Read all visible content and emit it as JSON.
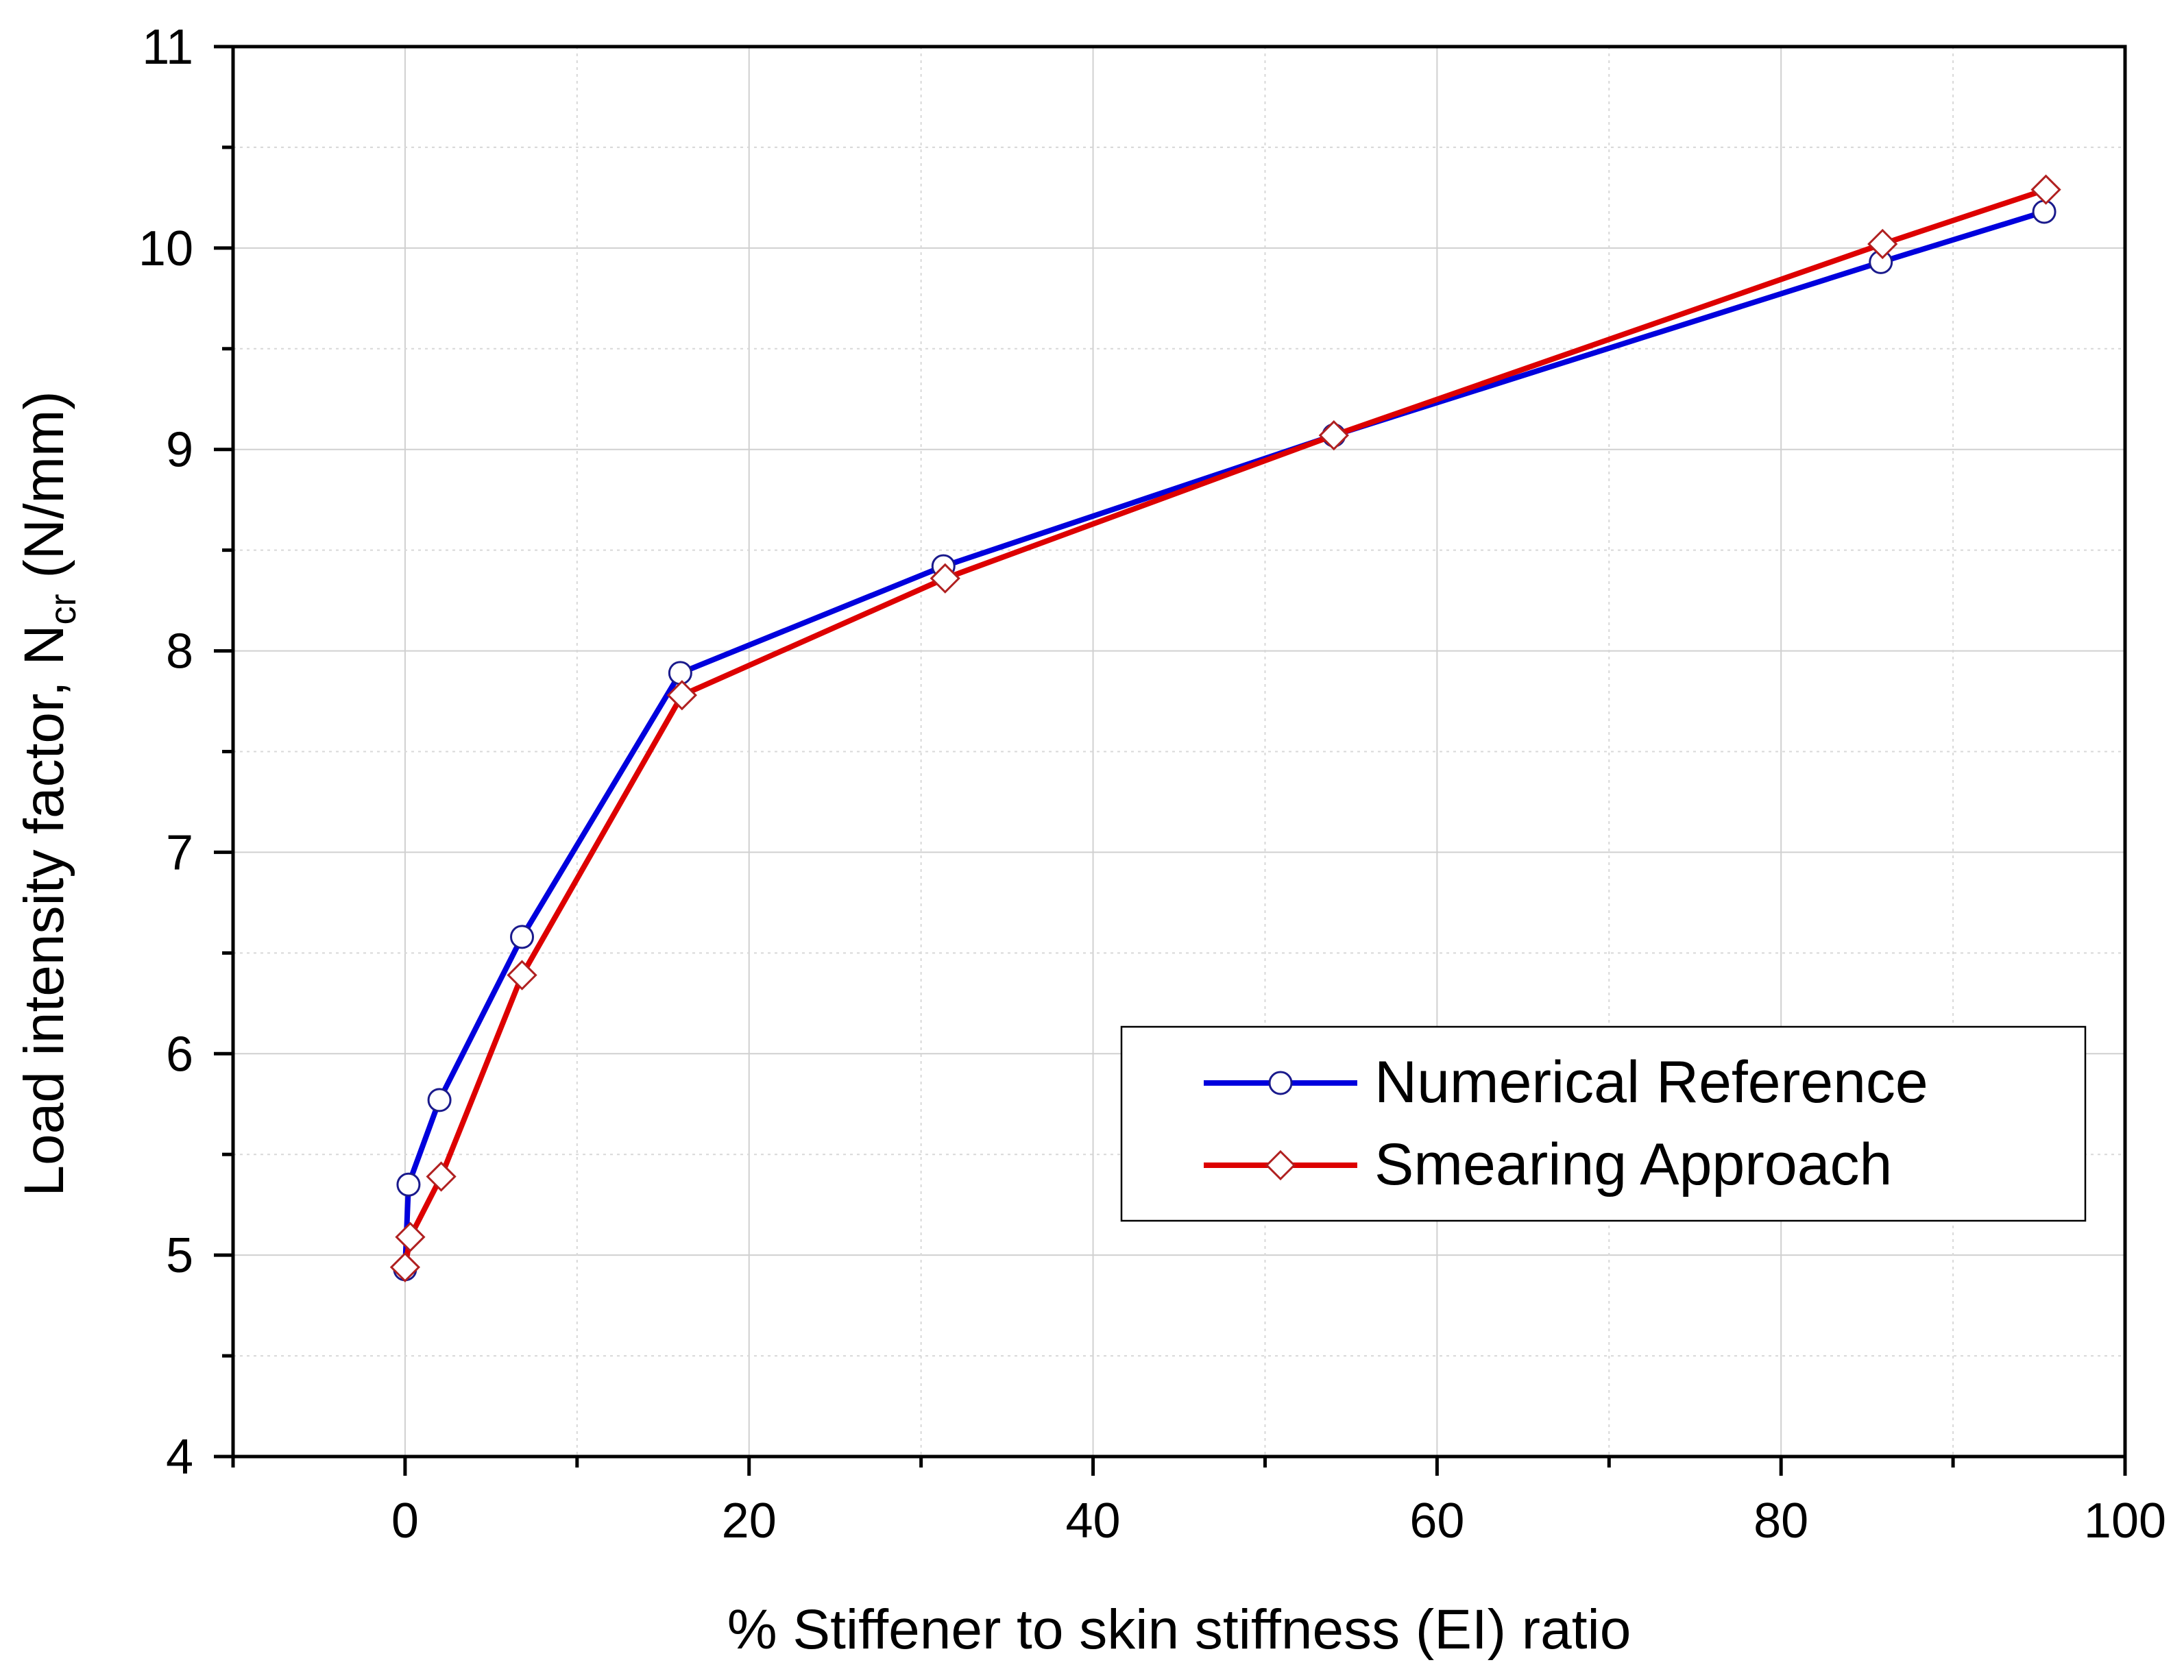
{
  "chart_data": {
    "type": "line",
    "title": "",
    "xlabel": "% Stiffener to skin stiffness (EI) ratio",
    "ylabel_main": "Load intensity factor, N",
    "ylabel_sub": "cr",
    "ylabel_unit": " (N/mm)",
    "xlim": [
      -10,
      100
    ],
    "ylim": [
      4,
      11
    ],
    "x_ticks": [
      0,
      20,
      40,
      60,
      80,
      100
    ],
    "x_tick_labels": [
      "0",
      "20",
      "40",
      "60",
      "80",
      "100"
    ],
    "x_minor_ticks": [
      -10,
      10,
      30,
      50,
      70,
      90
    ],
    "y_ticks": [
      4,
      5,
      6,
      7,
      8,
      9,
      10,
      11
    ],
    "y_tick_labels": [
      "4",
      "5",
      "6",
      "7",
      "8",
      "9",
      "10",
      "11"
    ],
    "y_minor_ticks": [
      4.5,
      5.5,
      6.5,
      7.5,
      8.5,
      9.5,
      10.5
    ],
    "grid": true,
    "legend_position": "center-right",
    "series": [
      {
        "name": "Numerical Reference",
        "color": "#0000dd",
        "marker": "circle",
        "marker_color": "#1a1a8c",
        "x": [
          0,
          0.2,
          2.0,
          6.8,
          16.0,
          31.3,
          54.0,
          85.8,
          95.3
        ],
        "y": [
          4.93,
          5.35,
          5.77,
          6.58,
          7.89,
          8.42,
          9.07,
          9.93,
          10.18
        ]
      },
      {
        "name": "Smearing Approach",
        "color": "#dd0000",
        "marker": "diamond",
        "marker_color": "#b02020",
        "x": [
          0,
          0.3,
          2.1,
          6.8,
          16.1,
          31.4,
          54.0,
          85.9,
          95.4
        ],
        "y": [
          4.94,
          5.09,
          5.39,
          6.39,
          7.78,
          8.36,
          9.07,
          10.02,
          10.29
        ]
      }
    ]
  }
}
